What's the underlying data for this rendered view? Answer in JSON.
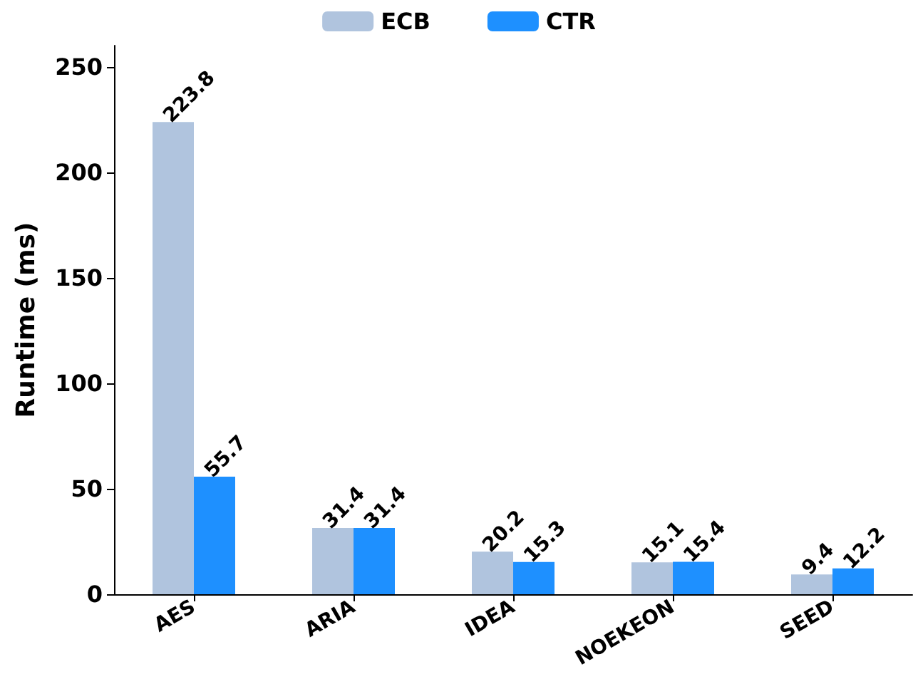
{
  "chart_data": {
    "type": "bar",
    "ylabel": "Runtime (ms)",
    "categories": [
      "AES",
      "ARIA",
      "IDEA",
      "NOEKEON",
      "SEED"
    ],
    "series": [
      {
        "name": "ECB",
        "color": "#b0c4de",
        "values": [
          223.8,
          31.4,
          20.2,
          15.1,
          9.4
        ]
      },
      {
        "name": "CTR",
        "color": "#1e90ff",
        "values": [
          55.7,
          31.4,
          15.3,
          15.4,
          12.2
        ]
      }
    ],
    "ylim": [
      0,
      260
    ],
    "yticks": [
      0,
      50,
      100,
      150,
      200,
      250
    ],
    "data_labels": true,
    "legend": "top",
    "grid": false
  }
}
